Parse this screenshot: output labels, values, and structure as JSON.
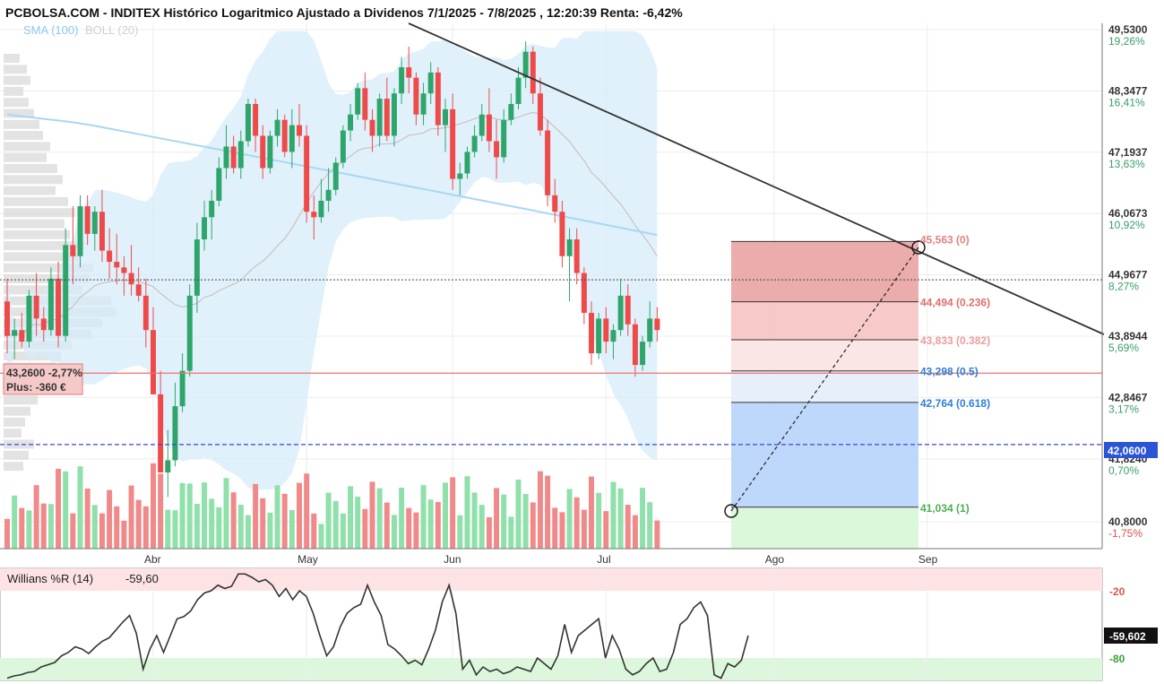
{
  "header": {
    "title": "PCBOLSA.COM - INDITEX Histórico Logaritmico Ajustado a Dividenos 7/1/2025 - 7/8/2025 , 12:20:39 Renta: -6,42%"
  },
  "legend": {
    "sma_label": "SMA (100)",
    "boll_label": "BOLL (20)"
  },
  "position_box": {
    "line1": "43,2600  -2,77%",
    "line2": "Plus: -360 €"
  },
  "price_axis": [
    {
      "price": 49.53,
      "label": "49,5300",
      "pct": "19,26%"
    },
    {
      "price": 48.3477,
      "label": "48,3477",
      "pct": "16,41%"
    },
    {
      "price": 47.1937,
      "label": "47,1937",
      "pct": "13,63%"
    },
    {
      "price": 46.0673,
      "label": "46,0673",
      "pct": "10,92%"
    },
    {
      "price": 44.9677,
      "label": "44,9677",
      "pct": "8,27%"
    },
    {
      "price": 43.8944,
      "label": "43,8944",
      "pct": "5,69%"
    },
    {
      "price": 42.8467,
      "label": "42,8467",
      "pct": "3,17%"
    },
    {
      "price": 41.824,
      "label": "41,8240",
      "pct": "0,70%"
    },
    {
      "price": 40.8,
      "label": "40,8000",
      "pct": "-1,75%"
    }
  ],
  "current_price": {
    "value": 42.06,
    "label": "42,0600"
  },
  "month_labels": [
    {
      "label": "Abr",
      "day": 20
    },
    {
      "label": "May",
      "day": 41
    },
    {
      "label": "Jun",
      "day": 61
    },
    {
      "label": "Jul",
      "day": 82
    },
    {
      "label": "Ago",
      "day": 105
    },
    {
      "label": "Sep",
      "day": 126
    }
  ],
  "fibonacci": [
    {
      "price": 45.563,
      "label": "45,563 (0)"
    },
    {
      "price": 44.494,
      "label": "44,494 (0.236)"
    },
    {
      "price": 43.833,
      "label": "43,833 (0.382)"
    },
    {
      "price": 43.298,
      "label": "43,298 (0.5)"
    },
    {
      "price": 42.764,
      "label": "42,764 (0.618)"
    },
    {
      "price": 41.034,
      "label": "41,034 (1)"
    }
  ],
  "reference_lines": {
    "dotted_price": 44.88,
    "red_entry_price": 43.26
  },
  "willians": {
    "label": "Willians %R (14)",
    "value": "-59,60",
    "last_label": "-59,602",
    "level_high": "-20",
    "level_low": "-80",
    "values": [
      -98,
      -96,
      -95,
      -93,
      -92,
      -88,
      -86,
      -84,
      -78,
      -75,
      -70,
      -72,
      -76,
      -70,
      -65,
      -62,
      -55,
      -48,
      -42,
      -58,
      -90,
      -72,
      -60,
      -75,
      -60,
      -45,
      -43,
      -38,
      -28,
      -22,
      -20,
      -15,
      -18,
      -16,
      -5,
      -5,
      -8,
      -12,
      -10,
      -15,
      -25,
      -18,
      -28,
      -20,
      -25,
      -40,
      -60,
      -78,
      -70,
      -52,
      -40,
      -35,
      -32,
      -15,
      -30,
      -42,
      -68,
      -72,
      -78,
      -85,
      -82,
      -86,
      -72,
      -55,
      -30,
      -15,
      -40,
      -90,
      -82,
      -95,
      -88,
      -92,
      -90,
      -94,
      -92,
      -88,
      -90,
      -92,
      -80,
      -85,
      -90,
      -78,
      -50,
      -75,
      -60,
      -55,
      -50,
      -45,
      -80,
      -60,
      -72,
      -90,
      -95,
      -92,
      -85,
      -80,
      -92,
      -90,
      -75,
      -50,
      -45,
      -35,
      -30,
      -42,
      -95,
      -98,
      -85,
      -88,
      -82,
      -60
    ],
    "chart_data": {
      "type": "line",
      "ylim": [
        -100,
        0
      ]
    }
  },
  "chart_data": {
    "type": "candlestick",
    "ylim": [
      40.8,
      49.53
    ],
    "scale": "log",
    "ohlc": [
      [
        44.5,
        44.9,
        43.6,
        43.9
      ],
      [
        43.9,
        44.2,
        43.5,
        44.0
      ],
      [
        44.0,
        44.3,
        43.7,
        43.8
      ],
      [
        43.8,
        44.7,
        43.7,
        44.6
      ],
      [
        44.6,
        45.0,
        43.9,
        44.2
      ],
      [
        44.2,
        44.4,
        43.8,
        44.0
      ],
      [
        44.0,
        45.1,
        43.9,
        44.9
      ],
      [
        44.9,
        45.2,
        43.7,
        43.9
      ],
      [
        43.9,
        45.8,
        43.8,
        45.5
      ],
      [
        45.5,
        46.2,
        44.8,
        45.3
      ],
      [
        45.3,
        46.4,
        45.1,
        46.2
      ],
      [
        46.2,
        46.4,
        45.5,
        45.7
      ],
      [
        45.7,
        46.2,
        45.4,
        46.1
      ],
      [
        46.1,
        46.5,
        45.2,
        45.4
      ],
      [
        45.4,
        45.8,
        44.9,
        45.2
      ],
      [
        45.2,
        45.7,
        44.8,
        45.1
      ],
      [
        45.1,
        45.3,
        44.6,
        45.0
      ],
      [
        45.0,
        45.5,
        44.6,
        44.8
      ],
      [
        44.8,
        45.1,
        44.5,
        44.6
      ],
      [
        44.6,
        44.9,
        43.7,
        44.0
      ],
      [
        44.0,
        44.4,
        42.9,
        42.9
      ],
      [
        42.9,
        43.3,
        41.6,
        41.6
      ],
      [
        41.6,
        42.3,
        41.2,
        41.8
      ],
      [
        41.8,
        43.1,
        41.7,
        42.7
      ],
      [
        42.7,
        43.6,
        42.6,
        43.3
      ],
      [
        43.3,
        44.8,
        43.2,
        44.6
      ],
      [
        44.6,
        45.9,
        44.3,
        45.6
      ],
      [
        45.6,
        46.3,
        45.4,
        46.0
      ],
      [
        46.0,
        46.5,
        45.6,
        46.3
      ],
      [
        46.3,
        47.1,
        46.2,
        46.9
      ],
      [
        46.9,
        47.7,
        46.7,
        47.3
      ],
      [
        47.3,
        47.5,
        46.8,
        46.9
      ],
      [
        46.9,
        47.6,
        46.7,
        47.4
      ],
      [
        47.4,
        48.2,
        47.3,
        48.1
      ],
      [
        48.1,
        48.2,
        47.2,
        47.5
      ],
      [
        47.5,
        47.7,
        46.7,
        46.9
      ],
      [
        46.9,
        47.6,
        46.8,
        47.5
      ],
      [
        47.5,
        48.0,
        47.3,
        47.8
      ],
      [
        47.8,
        47.9,
        47.1,
        47.2
      ],
      [
        47.2,
        48.0,
        46.9,
        47.7
      ],
      [
        47.7,
        48.1,
        47.3,
        47.5
      ],
      [
        47.5,
        47.7,
        45.9,
        46.1
      ],
      [
        46.1,
        46.4,
        45.6,
        46.0
      ],
      [
        46.0,
        46.7,
        45.9,
        46.3
      ],
      [
        46.3,
        46.9,
        46.1,
        46.5
      ],
      [
        46.5,
        47.1,
        46.4,
        47.0
      ],
      [
        47.0,
        47.7,
        46.9,
        47.6
      ],
      [
        47.6,
        48.1,
        47.4,
        47.9
      ],
      [
        47.9,
        48.5,
        47.8,
        48.4
      ],
      [
        48.4,
        48.7,
        47.6,
        47.8
      ],
      [
        47.8,
        48.0,
        47.2,
        47.5
      ],
      [
        47.5,
        48.3,
        47.3,
        48.2
      ],
      [
        48.2,
        48.6,
        47.4,
        47.5
      ],
      [
        47.5,
        48.4,
        47.3,
        48.3
      ],
      [
        48.3,
        49.0,
        48.1,
        48.8
      ],
      [
        48.8,
        49.2,
        48.3,
        48.6
      ],
      [
        48.6,
        48.7,
        47.7,
        47.9
      ],
      [
        47.9,
        48.5,
        47.7,
        48.3
      ],
      [
        48.3,
        48.9,
        48.1,
        48.7
      ],
      [
        48.7,
        48.8,
        47.5,
        47.7
      ],
      [
        47.7,
        48.2,
        47.2,
        48.0
      ],
      [
        48.0,
        48.3,
        46.5,
        46.7
      ],
      [
        46.7,
        47.0,
        46.4,
        46.8
      ],
      [
        46.8,
        47.3,
        46.7,
        47.2
      ],
      [
        47.2,
        47.7,
        47.1,
        47.5
      ],
      [
        47.5,
        48.1,
        47.4,
        47.9
      ],
      [
        47.9,
        48.4,
        47.2,
        47.4
      ],
      [
        47.4,
        47.8,
        46.7,
        47.1
      ],
      [
        47.1,
        48.0,
        47.0,
        47.8
      ],
      [
        47.8,
        48.3,
        47.7,
        48.1
      ],
      [
        48.1,
        48.8,
        48.0,
        48.6
      ],
      [
        48.6,
        49.3,
        48.4,
        49.1
      ],
      [
        49.1,
        49.2,
        48.1,
        48.3
      ],
      [
        48.3,
        48.6,
        47.5,
        47.6
      ],
      [
        47.6,
        47.8,
        46.2,
        46.4
      ],
      [
        46.4,
        46.7,
        45.9,
        46.1
      ],
      [
        46.1,
        46.3,
        45.1,
        45.3
      ],
      [
        45.3,
        45.8,
        44.5,
        45.6
      ],
      [
        45.6,
        45.8,
        44.8,
        45.0
      ],
      [
        45.0,
        45.1,
        44.1,
        44.3
      ],
      [
        44.3,
        44.5,
        43.4,
        43.6
      ],
      [
        43.6,
        44.3,
        43.5,
        44.2
      ],
      [
        44.2,
        44.4,
        43.6,
        43.8
      ],
      [
        43.8,
        44.1,
        43.5,
        44.0
      ],
      [
        44.0,
        44.9,
        43.9,
        44.6
      ],
      [
        44.6,
        44.8,
        43.9,
        44.1
      ],
      [
        44.1,
        44.2,
        43.2,
        43.4
      ],
      [
        43.4,
        43.9,
        43.3,
        43.8
      ],
      [
        43.8,
        44.5,
        43.7,
        44.2
      ],
      [
        44.2,
        44.4,
        43.8,
        44.0
      ]
    ],
    "sma100": [
      47.9,
      47.85,
      47.8,
      47.75,
      47.68,
      47.6,
      47.52,
      47.44,
      47.36,
      47.28,
      47.2,
      47.12,
      47.04,
      46.96,
      46.88,
      46.8,
      46.72,
      46.64,
      46.56,
      46.48,
      46.4,
      46.32,
      46.24,
      46.16,
      46.08,
      46.0,
      45.92,
      45.84,
      45.76,
      45.68
    ]
  }
}
